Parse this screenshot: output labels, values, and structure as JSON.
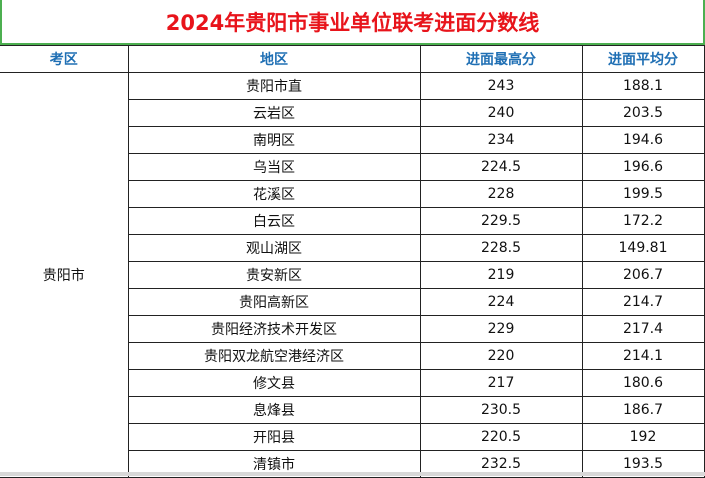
{
  "title": "2024年贵阳市事业单位联考进面分数线",
  "headers": [
    "考区",
    "地区",
    "进面最高分",
    "进面平均分"
  ],
  "exam_area": "贵阳市",
  "rows": [
    {
      "region": "贵阳市直",
      "max": "243",
      "avg": "188.1"
    },
    {
      "region": "云岩区",
      "max": "240",
      "avg": "203.5"
    },
    {
      "region": "南明区",
      "max": "234",
      "avg": "194.6"
    },
    {
      "region": "乌当区",
      "max": "224.5",
      "avg": "196.6"
    },
    {
      "region": "花溪区",
      "max": "228",
      "avg": "199.5"
    },
    {
      "region": "白云区",
      "max": "229.5",
      "avg": "172.2"
    },
    {
      "region": "观山湖区",
      "max": "228.5",
      "avg": "149.81"
    },
    {
      "region": "贵安新区",
      "max": "219",
      "avg": "206.7"
    },
    {
      "region": "贵阳高新区",
      "max": "224",
      "avg": "214.7"
    },
    {
      "region": "贵阳经济技术开发区",
      "max": "229",
      "avg": "217.4"
    },
    {
      "region": "贵阳双龙航空港经济区",
      "max": "220",
      "avg": "214.1"
    },
    {
      "region": "修文县",
      "max": "217",
      "avg": "180.6"
    },
    {
      "region": "息烽县",
      "max": "230.5",
      "avg": "186.7"
    },
    {
      "region": "开阳县",
      "max": "220.5",
      "avg": "192"
    },
    {
      "region": "清镇市",
      "max": "232.5",
      "avg": "193.5"
    }
  ],
  "colors": {
    "title": "#e8141b",
    "header": "#1f6fb4",
    "title_border": "#4caf50"
  }
}
